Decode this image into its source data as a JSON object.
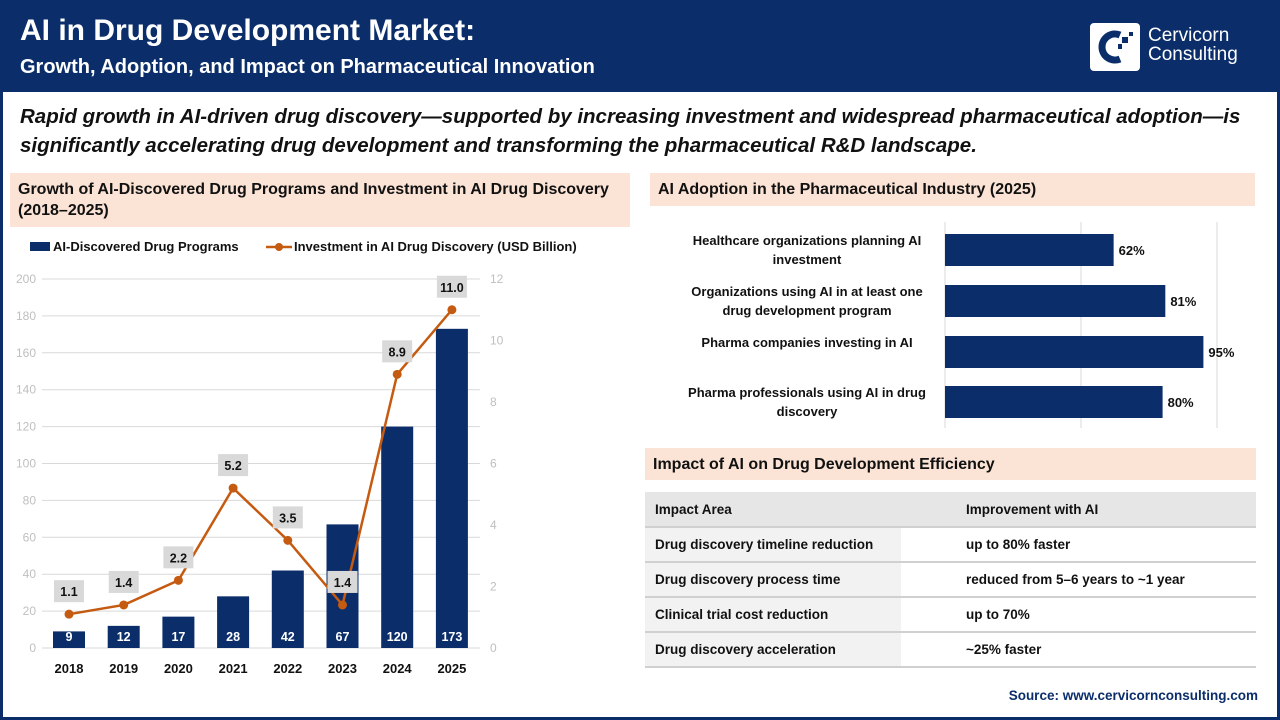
{
  "header": {
    "title": "AI in Drug Development Market:",
    "subtitle": "Growth, Adoption, and Impact on Pharmaceutical Innovation",
    "logo_line1": "Cervicorn",
    "logo_line2": "Consulting"
  },
  "lede": "Rapid growth in AI-driven drug discovery—supported by increasing investment and widespread pharmaceutical adoption—is significantly accelerating drug development and transforming the pharmaceutical R&D landscape.",
  "colors": {
    "navy": "#0b2e6b",
    "orange": "#c55a11",
    "peach": "#fbe4d6"
  },
  "chart_data": [
    {
      "type": "bar+line",
      "title": "Growth of AI-Discovered Drug Programs and Investment in AI Drug Discovery (2018–2025)",
      "categories": [
        "2018",
        "2019",
        "2020",
        "2021",
        "2022",
        "2023",
        "2024",
        "2025"
      ],
      "series": [
        {
          "name": "AI-Discovered Drug Programs",
          "type": "bar",
          "axis": "left",
          "values": [
            9,
            12,
            17,
            28,
            42,
            67,
            120,
            173
          ]
        },
        {
          "name": "Investment in AI Drug Discovery (USD Billion)",
          "type": "line",
          "axis": "right",
          "values": [
            1.1,
            1.4,
            2.2,
            5.2,
            3.5,
            1.4,
            8.9,
            11.0
          ],
          "labels": [
            "1.1",
            "1.4",
            "2.2",
            "5.2",
            "3.5",
            "1.4",
            "8.9",
            "11.0"
          ]
        }
      ],
      "ylim_left": [
        0,
        200
      ],
      "yticks_left": [
        "0",
        "20",
        "40",
        "60",
        "80",
        "100",
        "120",
        "140",
        "160",
        "180",
        "200"
      ],
      "ylim_right": [
        0,
        12
      ],
      "yticks_right": [
        "0",
        "2",
        "4",
        "6",
        "8",
        "10",
        "12"
      ],
      "grid": true,
      "legend": "top"
    },
    {
      "type": "bar",
      "orientation": "horizontal",
      "title": "AI Adoption in the Pharmaceutical Industry (2025)",
      "categories": [
        "Healthcare organizations planning AI investment",
        "Organizations using AI in at least one drug development program",
        "Pharma companies investing in AI",
        "Pharma professionals using AI in drug discovery"
      ],
      "values": [
        62,
        81,
        95,
        80
      ],
      "labels": [
        "62%",
        "81%",
        "95%",
        "80%"
      ],
      "xlim": [
        0,
        100
      ]
    }
  ],
  "table": {
    "title": "Impact of AI on Drug Development Efficiency",
    "headers": [
      "Impact Area",
      "Improvement with AI"
    ],
    "rows": [
      [
        "Drug discovery timeline reduction",
        "up to 80% faster"
      ],
      [
        "Drug discovery process time",
        "reduced from 5–6 years to ~1 year"
      ],
      [
        "Clinical trial cost reduction",
        "up to 70%"
      ],
      [
        "Drug discovery acceleration",
        "~25% faster"
      ]
    ]
  },
  "source": "Source: www.cervicornconsulting.com"
}
